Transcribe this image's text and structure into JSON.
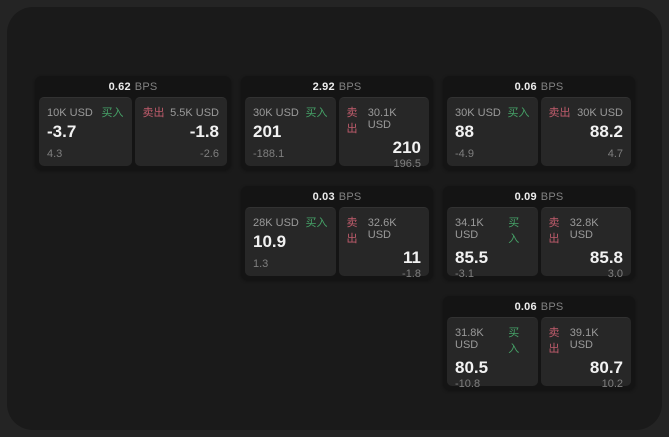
{
  "window": {
    "backdrop_color": "#242424",
    "panel_color": "#1a1a1a",
    "card_color": "#141414",
    "tile_color": "#272727"
  },
  "colors": {
    "buy": "#46a368",
    "sell": "#c05c6c",
    "value_text": "#f2f2f2",
    "muted_text": "#9a9a9a"
  },
  "labels": {
    "bps_unit": "BPS",
    "buy": "买入",
    "sell": "卖出"
  },
  "cards": [
    {
      "bps": "0.62",
      "buy": {
        "size": "10K USD",
        "value": "-3.7",
        "delta": "4.3"
      },
      "sell": {
        "size": "5.5K USD",
        "value": "-1.8",
        "delta": "-2.6"
      }
    },
    {
      "bps": "2.92",
      "buy": {
        "size": "30K USD",
        "value": "201",
        "delta": "-188.1"
      },
      "sell": {
        "size": "30.1K USD",
        "value": "210",
        "delta": "196.5"
      }
    },
    {
      "bps": "0.06",
      "buy": {
        "size": "30K USD",
        "value": "88",
        "delta": "-4.9"
      },
      "sell": {
        "size": "30K USD",
        "value": "88.2",
        "delta": "4.7"
      }
    },
    {
      "bps": "0.03",
      "buy": {
        "size": "28K USD",
        "value": "10.9",
        "delta": "1.3"
      },
      "sell": {
        "size": "32.6K USD",
        "value": "11",
        "delta": "-1.8"
      }
    },
    {
      "bps": "0.09",
      "buy": {
        "size": "34.1K USD",
        "value": "85.5",
        "delta": "-3.1"
      },
      "sell": {
        "size": "32.8K USD",
        "value": "85.8",
        "delta": "3.0"
      }
    },
    {
      "bps": "0.06",
      "buy": {
        "size": "31.8K USD",
        "value": "80.5",
        "delta": "-10.8"
      },
      "sell": {
        "size": "39.1K USD",
        "value": "80.7",
        "delta": "10.2"
      }
    }
  ]
}
